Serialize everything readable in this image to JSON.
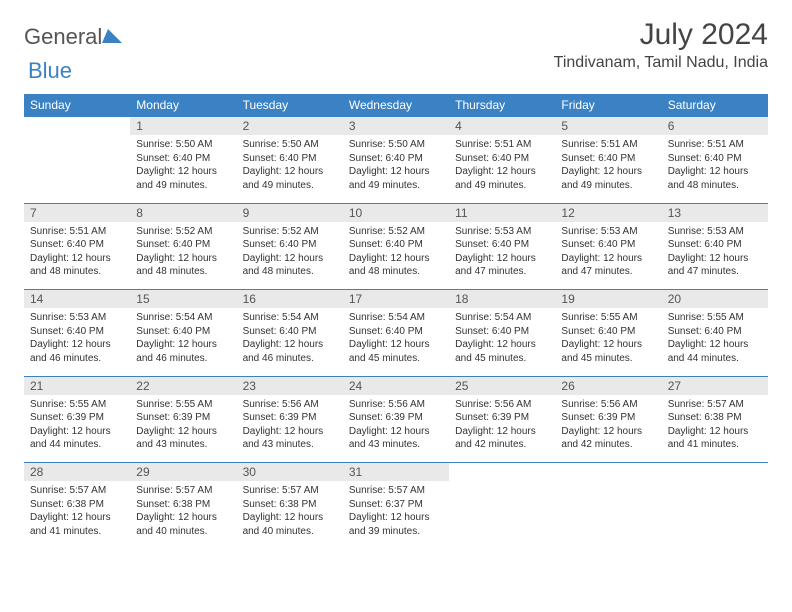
{
  "logo": {
    "text1": "General",
    "text2": "Blue"
  },
  "title": "July 2024",
  "location": "Tindivanam, Tamil Nadu, India",
  "colors": {
    "header_bg": "#3b82c4",
    "header_text": "#ffffff",
    "daynum_bg": "#e9e9e9",
    "border": "#3b82c4"
  },
  "weekdays": [
    "Sunday",
    "Monday",
    "Tuesday",
    "Wednesday",
    "Thursday",
    "Friday",
    "Saturday"
  ],
  "weeks": [
    {
      "nums": [
        "",
        "1",
        "2",
        "3",
        "4",
        "5",
        "6"
      ],
      "cells": [
        null,
        {
          "sr": "Sunrise: 5:50 AM",
          "ss": "Sunset: 6:40 PM",
          "dl": "Daylight: 12 hours and 49 minutes."
        },
        {
          "sr": "Sunrise: 5:50 AM",
          "ss": "Sunset: 6:40 PM",
          "dl": "Daylight: 12 hours and 49 minutes."
        },
        {
          "sr": "Sunrise: 5:50 AM",
          "ss": "Sunset: 6:40 PM",
          "dl": "Daylight: 12 hours and 49 minutes."
        },
        {
          "sr": "Sunrise: 5:51 AM",
          "ss": "Sunset: 6:40 PM",
          "dl": "Daylight: 12 hours and 49 minutes."
        },
        {
          "sr": "Sunrise: 5:51 AM",
          "ss": "Sunset: 6:40 PM",
          "dl": "Daylight: 12 hours and 49 minutes."
        },
        {
          "sr": "Sunrise: 5:51 AM",
          "ss": "Sunset: 6:40 PM",
          "dl": "Daylight: 12 hours and 48 minutes."
        }
      ]
    },
    {
      "nums": [
        "7",
        "8",
        "9",
        "10",
        "11",
        "12",
        "13"
      ],
      "cells": [
        {
          "sr": "Sunrise: 5:51 AM",
          "ss": "Sunset: 6:40 PM",
          "dl": "Daylight: 12 hours and 48 minutes."
        },
        {
          "sr": "Sunrise: 5:52 AM",
          "ss": "Sunset: 6:40 PM",
          "dl": "Daylight: 12 hours and 48 minutes."
        },
        {
          "sr": "Sunrise: 5:52 AM",
          "ss": "Sunset: 6:40 PM",
          "dl": "Daylight: 12 hours and 48 minutes."
        },
        {
          "sr": "Sunrise: 5:52 AM",
          "ss": "Sunset: 6:40 PM",
          "dl": "Daylight: 12 hours and 48 minutes."
        },
        {
          "sr": "Sunrise: 5:53 AM",
          "ss": "Sunset: 6:40 PM",
          "dl": "Daylight: 12 hours and 47 minutes."
        },
        {
          "sr": "Sunrise: 5:53 AM",
          "ss": "Sunset: 6:40 PM",
          "dl": "Daylight: 12 hours and 47 minutes."
        },
        {
          "sr": "Sunrise: 5:53 AM",
          "ss": "Sunset: 6:40 PM",
          "dl": "Daylight: 12 hours and 47 minutes."
        }
      ]
    },
    {
      "nums": [
        "14",
        "15",
        "16",
        "17",
        "18",
        "19",
        "20"
      ],
      "cells": [
        {
          "sr": "Sunrise: 5:53 AM",
          "ss": "Sunset: 6:40 PM",
          "dl": "Daylight: 12 hours and 46 minutes."
        },
        {
          "sr": "Sunrise: 5:54 AM",
          "ss": "Sunset: 6:40 PM",
          "dl": "Daylight: 12 hours and 46 minutes."
        },
        {
          "sr": "Sunrise: 5:54 AM",
          "ss": "Sunset: 6:40 PM",
          "dl": "Daylight: 12 hours and 46 minutes."
        },
        {
          "sr": "Sunrise: 5:54 AM",
          "ss": "Sunset: 6:40 PM",
          "dl": "Daylight: 12 hours and 45 minutes."
        },
        {
          "sr": "Sunrise: 5:54 AM",
          "ss": "Sunset: 6:40 PM",
          "dl": "Daylight: 12 hours and 45 minutes."
        },
        {
          "sr": "Sunrise: 5:55 AM",
          "ss": "Sunset: 6:40 PM",
          "dl": "Daylight: 12 hours and 45 minutes."
        },
        {
          "sr": "Sunrise: 5:55 AM",
          "ss": "Sunset: 6:40 PM",
          "dl": "Daylight: 12 hours and 44 minutes."
        }
      ]
    },
    {
      "nums": [
        "21",
        "22",
        "23",
        "24",
        "25",
        "26",
        "27"
      ],
      "cells": [
        {
          "sr": "Sunrise: 5:55 AM",
          "ss": "Sunset: 6:39 PM",
          "dl": "Daylight: 12 hours and 44 minutes."
        },
        {
          "sr": "Sunrise: 5:55 AM",
          "ss": "Sunset: 6:39 PM",
          "dl": "Daylight: 12 hours and 43 minutes."
        },
        {
          "sr": "Sunrise: 5:56 AM",
          "ss": "Sunset: 6:39 PM",
          "dl": "Daylight: 12 hours and 43 minutes."
        },
        {
          "sr": "Sunrise: 5:56 AM",
          "ss": "Sunset: 6:39 PM",
          "dl": "Daylight: 12 hours and 43 minutes."
        },
        {
          "sr": "Sunrise: 5:56 AM",
          "ss": "Sunset: 6:39 PM",
          "dl": "Daylight: 12 hours and 42 minutes."
        },
        {
          "sr": "Sunrise: 5:56 AM",
          "ss": "Sunset: 6:39 PM",
          "dl": "Daylight: 12 hours and 42 minutes."
        },
        {
          "sr": "Sunrise: 5:57 AM",
          "ss": "Sunset: 6:38 PM",
          "dl": "Daylight: 12 hours and 41 minutes."
        }
      ]
    },
    {
      "nums": [
        "28",
        "29",
        "30",
        "31",
        "",
        "",
        ""
      ],
      "cells": [
        {
          "sr": "Sunrise: 5:57 AM",
          "ss": "Sunset: 6:38 PM",
          "dl": "Daylight: 12 hours and 41 minutes."
        },
        {
          "sr": "Sunrise: 5:57 AM",
          "ss": "Sunset: 6:38 PM",
          "dl": "Daylight: 12 hours and 40 minutes."
        },
        {
          "sr": "Sunrise: 5:57 AM",
          "ss": "Sunset: 6:38 PM",
          "dl": "Daylight: 12 hours and 40 minutes."
        },
        {
          "sr": "Sunrise: 5:57 AM",
          "ss": "Sunset: 6:37 PM",
          "dl": "Daylight: 12 hours and 39 minutes."
        },
        null,
        null,
        null
      ]
    }
  ]
}
